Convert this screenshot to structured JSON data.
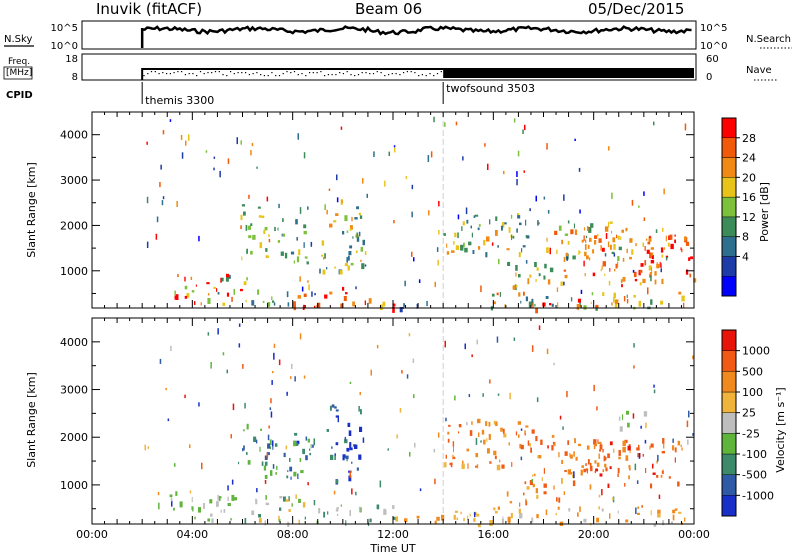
{
  "header": {
    "station": "Inuvik (fitACF)",
    "beam": "Beam 06",
    "date": "05/Dec/2015"
  },
  "top_panels": {
    "nsky_label": "N.Sky",
    "nsky_ticks": [
      "10^5",
      "10^0"
    ],
    "nsearch_label": "N.Search",
    "nsearch_ticks": [
      "10^5",
      "10^0"
    ],
    "freq_label_1": "Freq.",
    "freq_label_2": "[MHz]",
    "freq_ticks": [
      "18",
      "8"
    ],
    "nave_label": "Nave",
    "nave_ticks": [
      "60",
      "0"
    ],
    "cpid_label": "CPID",
    "cpid_modes": [
      {
        "name": "themis 3300",
        "start_hour": 2.0
      },
      {
        "name": "twofsound 3503",
        "start_hour": 14.0
      }
    ]
  },
  "time_axis": {
    "label": "Time UT",
    "ticks": [
      "00:00",
      "04:00",
      "08:00",
      "12:00",
      "16:00",
      "20:00",
      "00:00"
    ],
    "range_hours": [
      0,
      24
    ]
  },
  "power_panel": {
    "ylabel": "Slant Range [km]",
    "yticks": [
      4000,
      3000,
      2000,
      1000
    ],
    "ylim": [
      180,
      4500
    ],
    "colorbar_label": "Power [dB]",
    "colorbar_ticks": [
      "28",
      "24",
      "20",
      "16",
      "12",
      "8",
      "4"
    ],
    "colors": [
      "#0000ff",
      "#1e3ca8",
      "#2e6e8e",
      "#3c8c5a",
      "#7cc03c",
      "#e8c41a",
      "#f08a14",
      "#f05a0a",
      "#ff0000"
    ]
  },
  "velocity_panel": {
    "ylabel": "Slant Range [km]",
    "yticks": [
      4000,
      3000,
      2000,
      1000
    ],
    "ylim": [
      180,
      4500
    ],
    "colorbar_label": "Velocity [m s⁻¹]",
    "colorbar_ticks": [
      "1000",
      "500",
      "100",
      "25",
      "-25",
      "-100",
      "-500",
      "-1000"
    ],
    "colors": [
      "#1830c8",
      "#2e5aa6",
      "#3c8a6a",
      "#5fb43c",
      "#bebebe",
      "#f0b43c",
      "#f08a1e",
      "#f05a14",
      "#e8140a"
    ]
  },
  "chart_data": {
    "type": "heatmap",
    "title": "Inuvik (fitACF)",
    "subtitle": "Beam 06",
    "xlabel": "Time UT",
    "ylabel": "Slant Range [km]",
    "xlim_hours": [
      0,
      24
    ],
    "ylim_km": [
      180,
      4500
    ],
    "data_start_hour": 2.0,
    "mode_change_hour": 14.0,
    "power_patches": [
      {
        "t0": 3.2,
        "t1": 4.8,
        "r0": 300,
        "r1": 900,
        "c": [
          4,
          6,
          8,
          3,
          5
        ]
      },
      {
        "t0": 4.8,
        "t1": 6.2,
        "r0": 300,
        "r1": 1000,
        "c": [
          2,
          3,
          5,
          6,
          8,
          4
        ]
      },
      {
        "t0": 6.2,
        "t1": 7.8,
        "r0": 300,
        "r1": 700,
        "c": [
          2,
          3,
          4,
          5
        ]
      },
      {
        "t0": 8.0,
        "t1": 10.5,
        "r0": 180,
        "r1": 650,
        "c": [
          8,
          7,
          8,
          6
        ]
      },
      {
        "t0": 10.5,
        "t1": 12.0,
        "r0": 200,
        "r1": 500,
        "c": [
          8,
          6,
          5
        ]
      },
      {
        "t0": 12.0,
        "t1": 14.0,
        "r0": 180,
        "r1": 350,
        "c": [
          2,
          3,
          1
        ]
      },
      {
        "t0": 5.8,
        "t1": 7.0,
        "r0": 1300,
        "r1": 2500,
        "c": [
          3,
          4,
          5
        ]
      },
      {
        "t0": 7.2,
        "t1": 8.6,
        "r0": 1200,
        "r1": 2200,
        "c": [
          2,
          3,
          4,
          5
        ]
      },
      {
        "t0": 9.0,
        "t1": 10.8,
        "r0": 1000,
        "r1": 2600,
        "c": [
          5,
          6,
          3,
          4,
          2
        ]
      },
      {
        "t0": 14.0,
        "t1": 17.8,
        "r0": 1400,
        "r1": 2300,
        "c": [
          2,
          3,
          4,
          5,
          6
        ]
      },
      {
        "t0": 16.5,
        "t1": 19.0,
        "r0": 600,
        "r1": 1200,
        "c": [
          3,
          5,
          6,
          7
        ]
      },
      {
        "t0": 18.0,
        "t1": 21.5,
        "r0": 1300,
        "r1": 2100,
        "c": [
          3,
          4,
          5,
          6,
          7
        ]
      },
      {
        "t0": 19.5,
        "t1": 23.0,
        "r0": 700,
        "r1": 2000,
        "c": [
          6,
          7,
          8,
          5,
          6
        ]
      },
      {
        "t0": 22.0,
        "t1": 24.0,
        "r0": 800,
        "r1": 1800,
        "c": [
          8,
          7,
          8,
          6
        ]
      },
      {
        "t0": 14.5,
        "t1": 19.5,
        "r0": 180,
        "r1": 550,
        "c": [
          7,
          8,
          6,
          2,
          3
        ]
      },
      {
        "t0": 19.5,
        "t1": 24.0,
        "r0": 180,
        "r1": 550,
        "c": [
          6,
          4,
          5,
          3,
          7
        ]
      }
    ],
    "velocity_patches": [
      {
        "t0": 3.0,
        "t1": 6.0,
        "r0": 250,
        "r1": 900,
        "c": [
          3,
          4,
          5,
          4,
          3
        ]
      },
      {
        "t0": 6.0,
        "t1": 9.0,
        "r0": 200,
        "r1": 800,
        "c": [
          4,
          3,
          2,
          5
        ]
      },
      {
        "t0": 9.0,
        "t1": 12.0,
        "r0": 200,
        "r1": 600,
        "c": [
          4,
          3,
          2,
          5,
          4
        ]
      },
      {
        "t0": 12.0,
        "t1": 14.0,
        "r0": 180,
        "r1": 400,
        "c": [
          5,
          6,
          4
        ]
      },
      {
        "t0": 7.0,
        "t1": 8.8,
        "r0": 1100,
        "r1": 2300,
        "c": [
          1,
          0,
          2,
          3
        ]
      },
      {
        "t0": 9.2,
        "t1": 10.8,
        "r0": 1100,
        "r1": 2700,
        "c": [
          0,
          1,
          2,
          0
        ]
      },
      {
        "t0": 5.8,
        "t1": 7.0,
        "r0": 1200,
        "r1": 2300,
        "c": [
          2,
          3,
          1
        ]
      },
      {
        "t0": 14.0,
        "t1": 18.0,
        "r0": 1400,
        "r1": 2400,
        "c": [
          6,
          7,
          6,
          5,
          7
        ]
      },
      {
        "t0": 16.5,
        "t1": 19.2,
        "r0": 600,
        "r1": 1300,
        "c": [
          6,
          7,
          5
        ]
      },
      {
        "t0": 18.0,
        "t1": 21.5,
        "r0": 1300,
        "r1": 2100,
        "c": [
          6,
          7,
          6,
          7
        ]
      },
      {
        "t0": 19.5,
        "t1": 23.5,
        "r0": 1000,
        "r1": 2000,
        "c": [
          7,
          6,
          7,
          8,
          6
        ]
      },
      {
        "t0": 14.0,
        "t1": 24.0,
        "r0": 180,
        "r1": 550,
        "c": [
          5,
          6,
          4,
          6,
          5
        ]
      },
      {
        "t0": 21.0,
        "t1": 22.0,
        "r0": 2200,
        "r1": 2600,
        "c": [
          4,
          3
        ]
      }
    ]
  }
}
